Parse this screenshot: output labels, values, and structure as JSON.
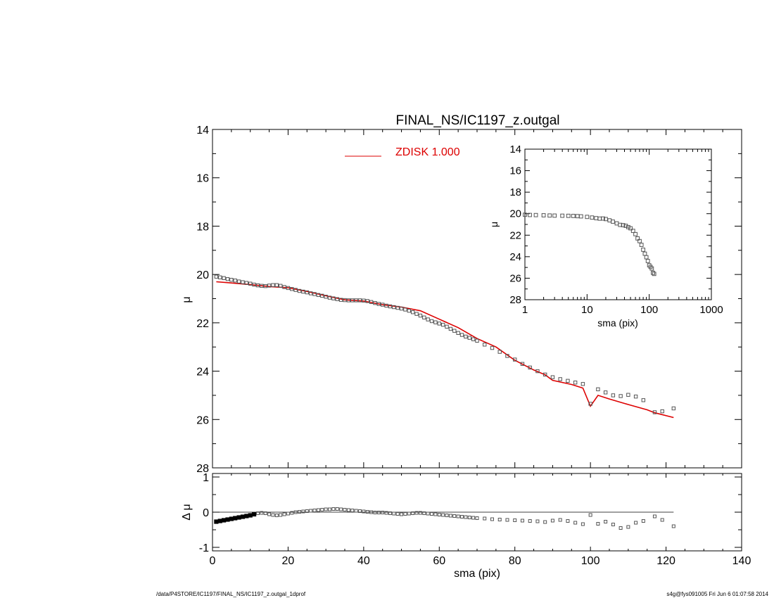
{
  "title": "FINAL_NS/IC1197_z.outgal",
  "footer": {
    "left": "/data/P4STORE/IC1197/FINAL_NS/IC1197_z.outgal_1dprof",
    "right": "s4g@fys091005  Fri Jun  6 01:07:58 2014"
  },
  "colors": {
    "model": "#dd0000",
    "points": "#555555",
    "axes": "#000000"
  },
  "chart_data": [
    {
      "panel": "main",
      "type": "scatter",
      "xlabel": "sma (pix)",
      "ylabel": "μ",
      "xlim": [
        0,
        140
      ],
      "ylim": [
        28,
        14
      ],
      "x_ticks": [
        "0",
        "20",
        "40",
        "60",
        "80",
        "100",
        "120",
        "140"
      ],
      "y_ticks": [
        "14",
        "16",
        "18",
        "20",
        "22",
        "24",
        "26",
        "28"
      ],
      "legend": {
        "placement": "top-center",
        "entries": [
          {
            "name": "ZDISK  1.000",
            "color": "#dd0000"
          }
        ]
      },
      "series": [
        {
          "name": "data",
          "marker": "open-square",
          "x": [
            1,
            2,
            3,
            4,
            5,
            6,
            7,
            8,
            9,
            10,
            11,
            12,
            13,
            14,
            15,
            16,
            17,
            18,
            19,
            20,
            21,
            22,
            23,
            24,
            25,
            26,
            27,
            28,
            29,
            30,
            31,
            32,
            33,
            34,
            35,
            36,
            37,
            38,
            39,
            40,
            41,
            42,
            43,
            44,
            45,
            46,
            47,
            48,
            49,
            50,
            51,
            52,
            53,
            54,
            55,
            56,
            57,
            58,
            59,
            60,
            61,
            62,
            63,
            64,
            65,
            66,
            67,
            68,
            69,
            70,
            72,
            74,
            76,
            78,
            80,
            82,
            84,
            86,
            88,
            90,
            92,
            94,
            96,
            98,
            100,
            102,
            104,
            106,
            108,
            110,
            112,
            114,
            117,
            119,
            122
          ],
          "y": [
            20.09,
            20.12,
            20.15,
            20.19,
            20.22,
            20.25,
            20.29,
            20.32,
            20.35,
            20.38,
            20.42,
            20.45,
            20.47,
            20.48,
            20.46,
            20.44,
            20.44,
            20.47,
            20.52,
            20.56,
            20.6,
            20.64,
            20.68,
            20.71,
            20.74,
            20.78,
            20.81,
            20.85,
            20.88,
            20.92,
            20.96,
            20.99,
            21.02,
            21.05,
            21.06,
            21.07,
            21.07,
            21.07,
            21.07,
            21.08,
            21.1,
            21.14,
            21.18,
            21.22,
            21.25,
            21.29,
            21.32,
            21.35,
            21.38,
            21.41,
            21.45,
            21.5,
            21.56,
            21.63,
            21.7,
            21.78,
            21.86,
            21.93,
            21.98,
            22.03,
            22.08,
            22.16,
            22.25,
            22.33,
            22.42,
            22.5,
            22.57,
            22.62,
            22.68,
            22.74,
            22.9,
            23.04,
            23.2,
            23.37,
            23.52,
            23.7,
            23.85,
            24.0,
            24.14,
            24.25,
            24.33,
            24.4,
            24.47,
            24.53,
            25.35,
            24.75,
            24.88,
            25.0,
            25.03,
            24.98,
            25.05,
            25.2,
            25.7,
            25.66,
            25.54
          ]
        },
        {
          "name": "ZDISK  1.000",
          "type": "line",
          "color": "#dd0000",
          "x": [
            1,
            5,
            10,
            15,
            20,
            25,
            30,
            35,
            40,
            45,
            50,
            55,
            60,
            65,
            70,
            75,
            80,
            85,
            88,
            90,
            95,
            98,
            100,
            102,
            105,
            110,
            115,
            117,
            122
          ],
          "y": [
            20.3,
            20.35,
            20.42,
            20.5,
            20.55,
            20.7,
            20.88,
            21.05,
            21.1,
            21.25,
            21.35,
            21.5,
            21.85,
            22.2,
            22.65,
            23.0,
            23.55,
            23.95,
            24.15,
            24.38,
            24.55,
            24.7,
            25.45,
            25.0,
            25.15,
            25.38,
            25.6,
            25.72,
            25.92
          ]
        }
      ]
    },
    {
      "panel": "residual",
      "type": "scatter",
      "xlabel": "sma (pix)",
      "ylabel": "Δ μ",
      "xlim": [
        0,
        140
      ],
      "ylim": [
        -1.1,
        1.1
      ],
      "y_ticks": [
        "1",
        "0",
        "-1"
      ],
      "reference_line": {
        "y": 0,
        "x_end": 122
      },
      "series": [
        {
          "name": "residual",
          "marker": "open-square",
          "x": [
            1,
            2,
            3,
            4,
            5,
            6,
            7,
            8,
            9,
            10,
            11,
            12,
            13,
            14,
            15,
            16,
            17,
            18,
            19,
            20,
            21,
            22,
            23,
            24,
            25,
            26,
            27,
            28,
            29,
            30,
            31,
            32,
            33,
            34,
            35,
            36,
            37,
            38,
            39,
            40,
            41,
            42,
            43,
            44,
            45,
            46,
            47,
            48,
            49,
            50,
            51,
            52,
            53,
            54,
            55,
            56,
            57,
            58,
            59,
            60,
            61,
            62,
            63,
            64,
            65,
            66,
            67,
            68,
            69,
            70,
            72,
            74,
            76,
            78,
            80,
            82,
            84,
            86,
            88,
            90,
            92,
            94,
            96,
            98,
            100,
            102,
            104,
            106,
            108,
            110,
            112,
            114,
            117,
            119,
            122
          ],
          "y": [
            -0.27,
            -0.25,
            -0.23,
            -0.21,
            -0.19,
            -0.17,
            -0.15,
            -0.13,
            -0.11,
            -0.09,
            -0.06,
            -0.03,
            -0.02,
            -0.03,
            -0.06,
            -0.08,
            -0.09,
            -0.08,
            -0.06,
            -0.04,
            -0.02,
            0.0,
            0.01,
            0.02,
            0.03,
            0.04,
            0.05,
            0.06,
            0.07,
            0.08,
            0.08,
            0.09,
            0.09,
            0.08,
            0.07,
            0.06,
            0.05,
            0.04,
            0.03,
            0.02,
            0.01,
            0.0,
            -0.01,
            -0.01,
            -0.01,
            -0.02,
            -0.03,
            -0.04,
            -0.05,
            -0.06,
            -0.05,
            -0.04,
            -0.03,
            -0.02,
            -0.02,
            -0.03,
            -0.04,
            -0.05,
            -0.06,
            -0.07,
            -0.08,
            -0.09,
            -0.1,
            -0.11,
            -0.12,
            -0.13,
            -0.14,
            -0.15,
            -0.16,
            -0.17,
            -0.18,
            -0.2,
            -0.21,
            -0.22,
            -0.23,
            -0.24,
            -0.25,
            -0.26,
            -0.28,
            -0.24,
            -0.22,
            -0.25,
            -0.3,
            -0.34,
            -0.08,
            -0.33,
            -0.27,
            -0.35,
            -0.45,
            -0.42,
            -0.3,
            -0.25,
            -0.12,
            -0.22,
            -0.4
          ]
        }
      ]
    },
    {
      "panel": "inset",
      "type": "scatter",
      "xscale": "log",
      "xlabel": "sma (pix)",
      "ylabel": "μ",
      "xlim": [
        1,
        1000
      ],
      "ylim": [
        28,
        14
      ],
      "x_ticks": [
        "1",
        "10",
        "100",
        "1000"
      ],
      "y_ticks": [
        "14",
        "16",
        "18",
        "20",
        "22",
        "24",
        "26",
        "28"
      ],
      "series": [
        {
          "name": "data",
          "marker": "open-square",
          "x": [
            1,
            1.2,
            1.5,
            2,
            2.5,
            3,
            4,
            5,
            6,
            7,
            8,
            10,
            12,
            14,
            16,
            18,
            20,
            23,
            26,
            30,
            34,
            38,
            42,
            46,
            50,
            55,
            60,
            65,
            70,
            75,
            80,
            85,
            90,
            95,
            100,
            105,
            110,
            115,
            120
          ],
          "y": [
            20.1,
            20.12,
            20.13,
            20.15,
            20.17,
            20.18,
            20.19,
            20.2,
            20.21,
            20.23,
            20.25,
            20.3,
            20.36,
            20.42,
            20.46,
            20.45,
            20.5,
            20.62,
            20.74,
            20.9,
            21.04,
            21.07,
            21.13,
            21.25,
            21.36,
            21.6,
            21.9,
            22.3,
            22.55,
            22.9,
            23.35,
            23.72,
            24.05,
            24.4,
            24.8,
            24.95,
            25.1,
            25.5,
            25.6
          ]
        }
      ]
    }
  ]
}
